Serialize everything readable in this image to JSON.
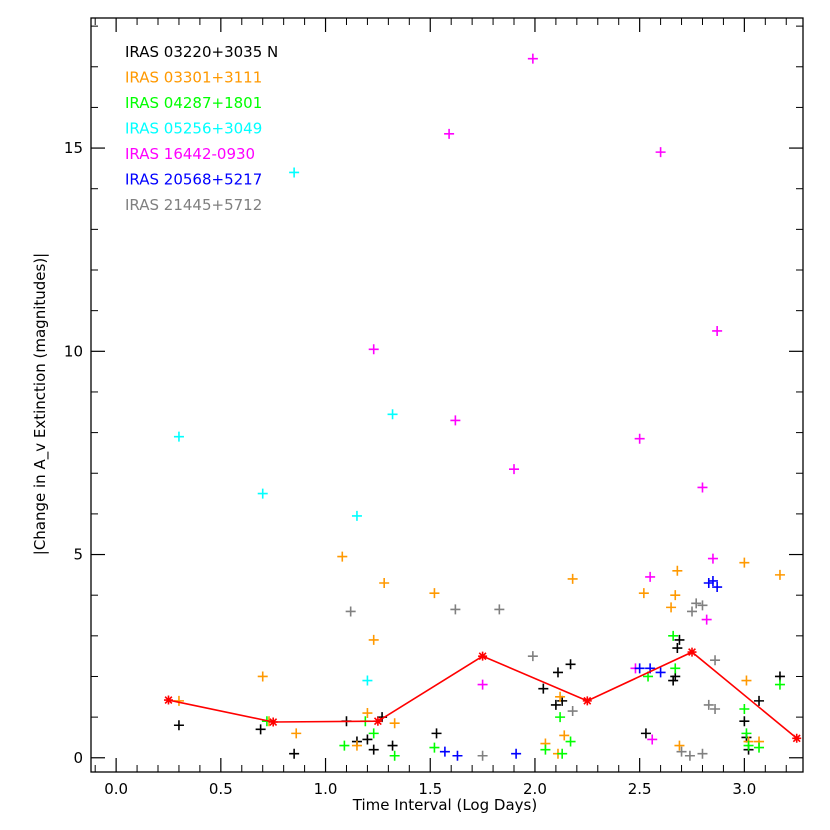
{
  "chart_data": {
    "type": "scatter",
    "title": "",
    "xlabel": "Time Interval (Log Days)",
    "ylabel": "|Change in A_v Extinction (magnitudes)|",
    "xlim": [
      -0.12,
      3.28
    ],
    "ylim": [
      -0.35,
      18.2
    ],
    "x_ticks": [
      "0.0",
      "0.5",
      "1.0",
      "1.5",
      "2.0",
      "2.5",
      "3.0"
    ],
    "x_tick_values": [
      0.0,
      0.5,
      1.0,
      1.5,
      2.0,
      2.5,
      3.0
    ],
    "y_ticks": [
      "0",
      "5",
      "10",
      "15"
    ],
    "y_tick_values": [
      0,
      5,
      10,
      15
    ],
    "grid": false,
    "legend": "top-left",
    "series": [
      {
        "name": "IRAS 03220+3035 N",
        "color": "#000000",
        "points": [
          [
            0.3,
            0.8
          ],
          [
            0.69,
            0.7
          ],
          [
            0.85,
            0.1
          ],
          [
            1.1,
            0.9
          ],
          [
            1.15,
            0.4
          ],
          [
            1.2,
            0.45
          ],
          [
            1.23,
            0.2
          ],
          [
            1.27,
            1.0
          ],
          [
            1.32,
            0.3
          ],
          [
            1.53,
            0.6
          ],
          [
            2.04,
            1.7
          ],
          [
            2.1,
            1.3
          ],
          [
            2.11,
            2.1
          ],
          [
            2.13,
            1.4
          ],
          [
            2.17,
            2.3
          ],
          [
            2.53,
            0.6
          ],
          [
            2.66,
            1.9
          ],
          [
            2.67,
            2.0
          ],
          [
            2.68,
            2.7
          ],
          [
            2.69,
            2.9
          ],
          [
            3.0,
            0.9
          ],
          [
            3.01,
            0.5
          ],
          [
            3.02,
            0.2
          ],
          [
            3.07,
            1.4
          ],
          [
            3.17,
            2.0
          ]
        ]
      },
      {
        "name": "IRAS 03301+3111",
        "color": "#ff9900",
        "points": [
          [
            0.3,
            1.4
          ],
          [
            0.7,
            2.0
          ],
          [
            0.73,
            0.9
          ],
          [
            0.86,
            0.6
          ],
          [
            1.08,
            4.95
          ],
          [
            1.15,
            0.3
          ],
          [
            1.2,
            1.1
          ],
          [
            1.23,
            2.9
          ],
          [
            1.28,
            4.3
          ],
          [
            1.33,
            0.85
          ],
          [
            1.52,
            4.05
          ],
          [
            2.05,
            0.35
          ],
          [
            2.11,
            0.1
          ],
          [
            2.12,
            1.5
          ],
          [
            2.14,
            0.55
          ],
          [
            2.18,
            4.4
          ],
          [
            2.52,
            4.05
          ],
          [
            2.65,
            3.7
          ],
          [
            2.67,
            4.0
          ],
          [
            2.68,
            4.6
          ],
          [
            2.69,
            0.3
          ],
          [
            3.0,
            4.8
          ],
          [
            3.01,
            1.9
          ],
          [
            3.02,
            0.4
          ],
          [
            3.07,
            0.4
          ],
          [
            3.17,
            4.5
          ]
        ]
      },
      {
        "name": "IRAS 04287+1801",
        "color": "#00ff00",
        "points": [
          [
            0.72,
            0.9
          ],
          [
            1.09,
            0.3
          ],
          [
            1.19,
            0.9
          ],
          [
            1.23,
            0.6
          ],
          [
            1.33,
            0.05
          ],
          [
            1.52,
            0.25
          ],
          [
            2.05,
            0.2
          ],
          [
            2.12,
            1.0
          ],
          [
            2.13,
            0.1
          ],
          [
            2.17,
            0.4
          ],
          [
            2.54,
            2.0
          ],
          [
            2.66,
            3.0
          ],
          [
            2.67,
            2.2
          ],
          [
            3.0,
            1.2
          ],
          [
            3.01,
            0.6
          ],
          [
            3.02,
            0.3
          ],
          [
            3.07,
            0.25
          ],
          [
            3.17,
            1.8
          ]
        ]
      },
      {
        "name": "IRAS 05256+3049",
        "color": "#00ffff",
        "points": [
          [
            0.3,
            7.9
          ],
          [
            0.7,
            6.5
          ],
          [
            0.85,
            14.4
          ],
          [
            1.15,
            5.95
          ],
          [
            1.2,
            1.9
          ],
          [
            1.32,
            8.45
          ]
        ]
      },
      {
        "name": "IRAS 16442-0930",
        "color": "#ff00ff",
        "points": [
          [
            1.23,
            10.05
          ],
          [
            1.59,
            15.35
          ],
          [
            1.62,
            8.3
          ],
          [
            1.75,
            1.8
          ],
          [
            1.9,
            7.1
          ],
          [
            1.99,
            17.2
          ],
          [
            2.48,
            2.2
          ],
          [
            2.5,
            7.85
          ],
          [
            2.55,
            4.45
          ],
          [
            2.56,
            0.45
          ],
          [
            2.6,
            14.9
          ],
          [
            2.8,
            6.65
          ],
          [
            2.82,
            3.4
          ],
          [
            2.85,
            4.9
          ],
          [
            2.87,
            10.5
          ]
        ]
      },
      {
        "name": "IRAS 20568+5217",
        "color": "#0000ff",
        "points": [
          [
            1.57,
            0.15
          ],
          [
            1.63,
            0.05
          ],
          [
            1.91,
            0.1
          ],
          [
            2.5,
            2.2
          ],
          [
            2.55,
            2.2
          ],
          [
            2.6,
            2.1
          ],
          [
            2.83,
            4.3
          ],
          [
            2.85,
            4.35
          ],
          [
            2.87,
            4.2
          ]
        ]
      },
      {
        "name": "IRAS 21445+5712",
        "color": "#808080",
        "points": [
          [
            1.12,
            3.6
          ],
          [
            1.62,
            3.65
          ],
          [
            1.75,
            0.05
          ],
          [
            1.83,
            3.65
          ],
          [
            1.99,
            2.5
          ],
          [
            2.18,
            1.15
          ],
          [
            2.7,
            0.15
          ],
          [
            2.74,
            0.05
          ],
          [
            2.75,
            3.6
          ],
          [
            2.77,
            3.8
          ],
          [
            2.8,
            0.1
          ],
          [
            2.8,
            3.75
          ],
          [
            2.83,
            1.3
          ],
          [
            2.86,
            1.2
          ],
          [
            2.86,
            2.4
          ]
        ]
      },
      {
        "name": "",
        "color": "#ff0000",
        "line_points": [
          [
            0.25,
            1.42
          ],
          [
            0.75,
            0.88
          ],
          [
            1.25,
            0.9
          ],
          [
            1.75,
            2.5
          ],
          [
            2.25,
            1.4
          ],
          [
            2.75,
            2.6
          ],
          [
            3.25,
            0.48
          ]
        ]
      }
    ]
  }
}
